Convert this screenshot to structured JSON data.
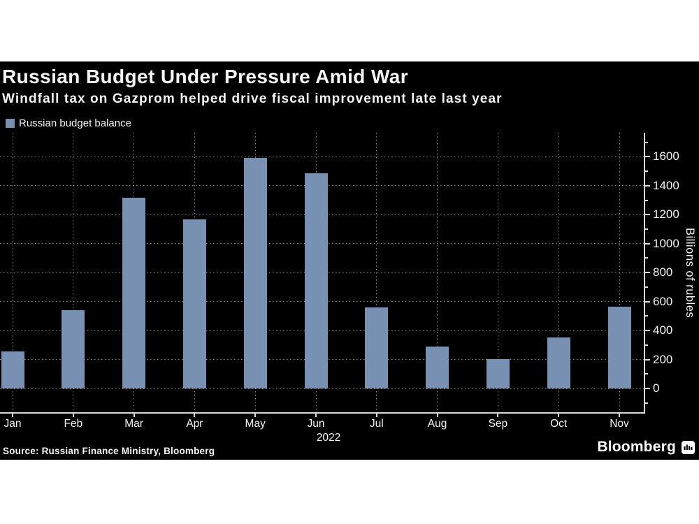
{
  "header": {
    "title": "Russian Budget Under Pressure Amid War",
    "subtitle": "Windfall tax on Gazprom helped drive fiscal improvement late last year"
  },
  "legend": {
    "label": "Russian budget balance"
  },
  "axis": {
    "y_title": "Billions of rubles",
    "year": "2022"
  },
  "footer": {
    "source": "Source: Russian Finance Ministry, Bloomberg",
    "brand": "Bloomberg"
  },
  "chart_data": {
    "type": "bar",
    "title": "Russian Budget Under Pressure Amid War",
    "subtitle": "Windfall tax on Gazprom helped drive fiscal improvement late last year",
    "series_name": "Russian budget balance",
    "categories": [
      "Jan",
      "Feb",
      "Mar",
      "Apr",
      "May",
      "Jun",
      "Jul",
      "Aug",
      "Sep",
      "Oct",
      "Nov"
    ],
    "values": [
      255,
      540,
      1315,
      1170,
      1590,
      1485,
      560,
      290,
      205,
      350,
      565
    ],
    "x_year_label": "2022",
    "xlabel": "",
    "ylabel": "Billions of rubles",
    "y_ticks": [
      0,
      200,
      400,
      600,
      800,
      1000,
      1200,
      1400,
      1600
    ],
    "y_minor_tick_step": 100,
    "ylim": [
      -170,
      1765
    ],
    "grid": "dotted horizontal at major ticks and vertical at month centers",
    "legend_position": "top-left",
    "units": "billions of rubles"
  },
  "colors": {
    "page_background": "#ffffff",
    "panel_background": "#000000",
    "bar": "#7891b3",
    "text": "#f5f5f5",
    "axis": "#d9d9d9",
    "grid": "rgba(255,255,255,0.55)"
  }
}
